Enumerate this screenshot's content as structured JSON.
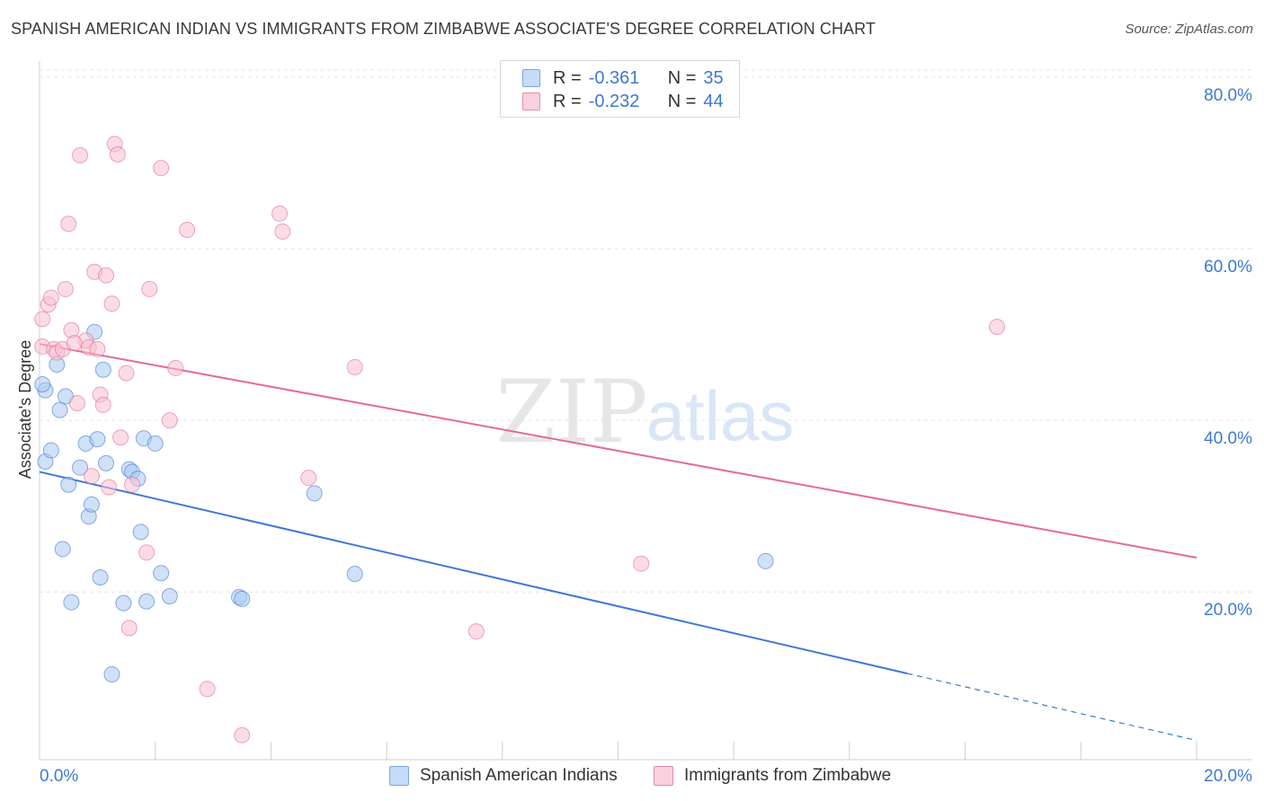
{
  "header": {
    "title": "SPANISH AMERICAN INDIAN VS IMMIGRANTS FROM ZIMBABWE ASSOCIATE'S DEGREE CORRELATION CHART",
    "source": "Source: ZipAtlas.com"
  },
  "watermark": {
    "zip": "ZIP",
    "atlas": "atlas"
  },
  "legend": {
    "rows": [
      {
        "r_label": "R =",
        "r_value": "-0.361",
        "n_label": "N =",
        "n_value": "35",
        "color": "#a9c8f0",
        "border": "#6f9fe0"
      },
      {
        "r_label": "R =",
        "r_value": "-0.232",
        "n_label": "N =",
        "n_value": "44",
        "color": "#f7bfd0",
        "border": "#e98aaa"
      }
    ]
  },
  "bottom_legend": {
    "blue_label": "Spanish American Indians",
    "pink_label": "Immigrants from Zimbabwe"
  },
  "chart_data": {
    "type": "scatter",
    "title": "SPANISH AMERICAN INDIAN VS IMMIGRANTS FROM ZIMBABWE ASSOCIATE'S DEGREE CORRELATION CHART",
    "xlabel": "",
    "ylabel": "Associate's Degree",
    "xlim": [
      0,
      20
    ],
    "ylim": [
      1.5,
      82.5
    ],
    "x_tick_labels": [
      "0.0%",
      "20.0%"
    ],
    "y_ticks": [
      20,
      40,
      60,
      80
    ],
    "y_tick_labels": [
      "20.0%",
      "40.0%",
      "60.0%",
      "80.0%"
    ],
    "grid": true,
    "colors": {
      "blue": "#3d78d6",
      "pink": "#e36a95",
      "tick_text": "#3d78d6"
    },
    "series": [
      {
        "name": "Spanish American Indians",
        "color": "#3d78d6",
        "fill": "#a9c8f0",
        "points": [
          [
            0.1,
            43.5
          ],
          [
            0.1,
            35.2
          ],
          [
            0.2,
            36.5
          ],
          [
            0.3,
            46.5
          ],
          [
            0.35,
            41.2
          ],
          [
            0.45,
            42.8
          ],
          [
            0.5,
            32.5
          ],
          [
            0.55,
            18.8
          ],
          [
            0.7,
            34.5
          ],
          [
            0.8,
            37.3
          ],
          [
            0.85,
            28.8
          ],
          [
            0.9,
            30.2
          ],
          [
            0.95,
            50.3
          ],
          [
            1.0,
            37.8
          ],
          [
            1.05,
            21.7
          ],
          [
            1.1,
            45.9
          ],
          [
            1.15,
            35.0
          ],
          [
            1.25,
            10.4
          ],
          [
            1.45,
            18.7
          ],
          [
            1.55,
            34.3
          ],
          [
            1.6,
            34.0
          ],
          [
            1.7,
            33.2
          ],
          [
            1.75,
            27.0
          ],
          [
            1.8,
            37.9
          ],
          [
            1.85,
            18.9
          ],
          [
            2.0,
            37.3
          ],
          [
            2.1,
            22.2
          ],
          [
            2.25,
            19.5
          ],
          [
            3.45,
            19.4
          ],
          [
            3.5,
            19.2
          ],
          [
            4.75,
            31.5
          ],
          [
            5.45,
            22.1
          ],
          [
            12.55,
            23.6
          ],
          [
            0.4,
            25.0
          ],
          [
            0.05,
            44.2
          ]
        ],
        "trend": {
          "x0": 0.0,
          "y0": 34.0,
          "x1": 15.0,
          "y1": 10.5,
          "dash_x1": 20.0,
          "dash_y1": 2.7
        }
      },
      {
        "name": "Immigrants from Zimbabwe",
        "color": "#e36a95",
        "fill": "#f7bfd0",
        "points": [
          [
            0.05,
            48.6
          ],
          [
            0.05,
            51.8
          ],
          [
            0.15,
            53.5
          ],
          [
            0.2,
            54.3
          ],
          [
            0.25,
            48.3
          ],
          [
            0.3,
            47.9
          ],
          [
            0.4,
            48.3
          ],
          [
            0.45,
            55.3
          ],
          [
            0.5,
            62.9
          ],
          [
            0.55,
            50.5
          ],
          [
            0.65,
            42.0
          ],
          [
            0.7,
            70.9
          ],
          [
            0.8,
            49.3
          ],
          [
            0.85,
            48.5
          ],
          [
            0.9,
            33.5
          ],
          [
            0.95,
            57.3
          ],
          [
            1.0,
            48.3
          ],
          [
            1.05,
            43.0
          ],
          [
            1.1,
            41.8
          ],
          [
            1.15,
            56.9
          ],
          [
            1.2,
            32.2
          ],
          [
            1.25,
            53.6
          ],
          [
            1.3,
            72.2
          ],
          [
            1.35,
            71.0
          ],
          [
            1.4,
            38.0
          ],
          [
            1.55,
            15.8
          ],
          [
            1.6,
            32.5
          ],
          [
            1.85,
            24.6
          ],
          [
            1.9,
            55.3
          ],
          [
            2.1,
            69.4
          ],
          [
            2.25,
            40.0
          ],
          [
            2.35,
            46.1
          ],
          [
            2.55,
            62.2
          ],
          [
            2.9,
            8.7
          ],
          [
            3.5,
            3.3
          ],
          [
            4.15,
            64.1
          ],
          [
            4.2,
            62.0
          ],
          [
            4.65,
            33.3
          ],
          [
            5.45,
            46.2
          ],
          [
            7.55,
            15.4
          ],
          [
            10.4,
            23.3
          ],
          [
            16.55,
            50.9
          ],
          [
            0.6,
            49.0
          ],
          [
            1.5,
            45.5
          ]
        ],
        "trend": {
          "x0": 0.0,
          "y0": 48.9,
          "x1": 20.0,
          "y1": 24.0
        }
      }
    ]
  }
}
